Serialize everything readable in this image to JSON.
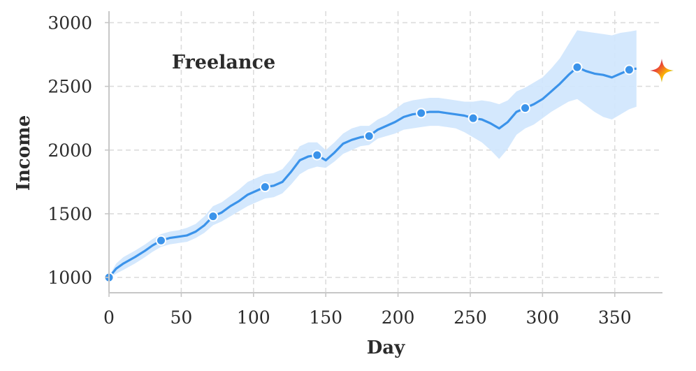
{
  "chart_data": {
    "type": "line",
    "title": "",
    "xlabel": "Day",
    "ylabel": "Income",
    "xlim": [
      0,
      383
    ],
    "ylim": [
      880,
      3090
    ],
    "xticks": [
      0,
      50,
      100,
      150,
      200,
      250,
      300,
      350
    ],
    "yticks": [
      1000,
      1500,
      2000,
      2500,
      3000
    ],
    "grid": true,
    "series_annotation": "Freelance",
    "line_color": "#3b93ea",
    "band_color": "#cfe6fd",
    "marker_color": "#3b93ea",
    "series": [
      {
        "x": [
          0,
          5,
          10,
          18,
          25,
          30,
          36,
          42,
          48,
          54,
          60,
          66,
          72,
          78,
          84,
          90,
          96,
          102,
          108,
          114,
          120,
          126,
          132,
          138,
          144,
          150,
          156,
          162,
          168,
          174,
          180,
          186,
          192,
          198,
          204,
          210,
          216,
          222,
          228,
          234,
          240,
          246,
          252,
          258,
          264,
          270,
          276,
          282,
          288,
          294,
          300,
          306,
          312,
          318,
          324,
          330,
          336,
          342,
          348,
          354,
          360,
          365
        ],
        "y": [
          1000,
          1070,
          1110,
          1160,
          1210,
          1250,
          1290,
          1310,
          1320,
          1330,
          1360,
          1410,
          1480,
          1510,
          1560,
          1600,
          1650,
          1680,
          1710,
          1720,
          1750,
          1830,
          1920,
          1950,
          1960,
          1920,
          1980,
          2050,
          2080,
          2100,
          2110,
          2160,
          2190,
          2220,
          2260,
          2280,
          2290,
          2300,
          2300,
          2290,
          2280,
          2270,
          2250,
          2240,
          2210,
          2170,
          2220,
          2300,
          2330,
          2360,
          2400,
          2460,
          2520,
          2590,
          2650,
          2620,
          2600,
          2590,
          2570,
          2600,
          2630,
          2640
        ],
        "lower": [
          990,
          1030,
          1060,
          1110,
          1160,
          1200,
          1240,
          1260,
          1270,
          1280,
          1310,
          1350,
          1410,
          1440,
          1480,
          1520,
          1560,
          1590,
          1620,
          1630,
          1660,
          1730,
          1810,
          1850,
          1870,
          1860,
          1910,
          1970,
          2000,
          2030,
          2040,
          2090,
          2110,
          2130,
          2160,
          2170,
          2180,
          2190,
          2190,
          2180,
          2170,
          2140,
          2100,
          2060,
          2000,
          1930,
          2010,
          2120,
          2170,
          2200,
          2250,
          2300,
          2340,
          2380,
          2400,
          2350,
          2300,
          2260,
          2240,
          2280,
          2320,
          2340
        ],
        "upper": [
          1010,
          1110,
          1160,
          1210,
          1260,
          1300,
          1340,
          1360,
          1370,
          1390,
          1420,
          1480,
          1560,
          1590,
          1640,
          1690,
          1750,
          1780,
          1810,
          1820,
          1850,
          1930,
          2030,
          2060,
          2060,
          2000,
          2060,
          2130,
          2170,
          2190,
          2190,
          2240,
          2270,
          2320,
          2370,
          2390,
          2400,
          2410,
          2410,
          2400,
          2390,
          2380,
          2380,
          2390,
          2380,
          2360,
          2390,
          2460,
          2490,
          2530,
          2570,
          2640,
          2720,
          2830,
          2940,
          2930,
          2920,
          2910,
          2900,
          2920,
          2930,
          2940
        ]
      }
    ],
    "markers": {
      "x": [
        0,
        36,
        72,
        108,
        144,
        180,
        216,
        252,
        288,
        324,
        360
      ],
      "y": [
        1000,
        1290,
        1480,
        1710,
        1960,
        2110,
        2290,
        2250,
        2330,
        2650,
        2630
      ]
    }
  },
  "logo": {
    "name": "sparkle-icon",
    "colors": [
      "#4285f4",
      "#ea4335",
      "#fbbc04",
      "#34a853"
    ]
  }
}
